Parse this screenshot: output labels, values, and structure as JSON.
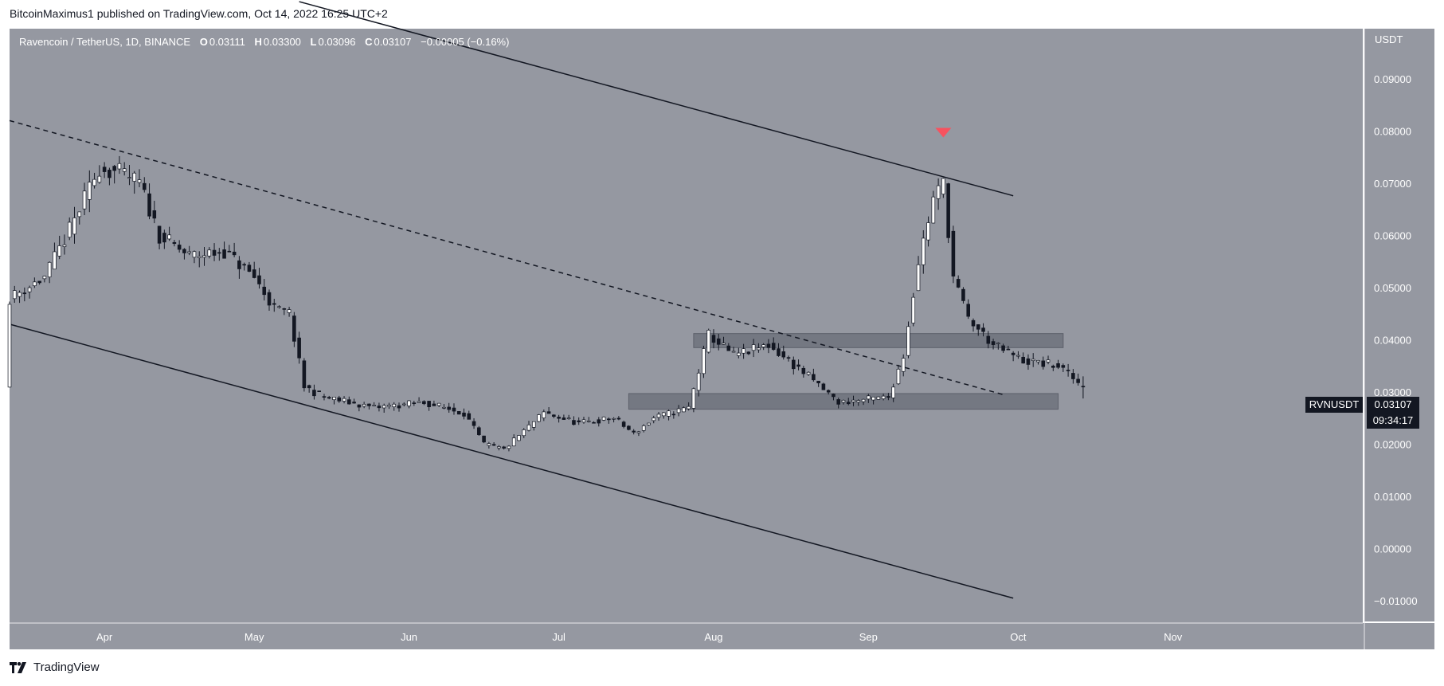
{
  "header": {
    "published_text": "BitcoinMaximus1 published on TradingView.com, Oct 14, 2022 16:25 UTC+2"
  },
  "legend": {
    "pair": "Ravencoin / TetherUS, 1D, BINANCE",
    "open_label": "O",
    "open_value": "0.03111",
    "high_label": "H",
    "high_value": "0.03300",
    "low_label": "L",
    "low_value": "0.03096",
    "close_label": "C",
    "close_value": "0.03107",
    "change": "−0.00005 (−0.16%)"
  },
  "price_axis": {
    "title": "USDT"
  },
  "badge": {
    "symbol": "RVNUSDT",
    "price": "0.03107",
    "countdown": "09:34:17"
  },
  "footer": {
    "brand": "TradingView"
  },
  "colors": {
    "plot_bg": "#9598a1",
    "axis_bg": "#9598a1",
    "up": "#ffffff",
    "down": "#131722",
    "line": "#131722",
    "zone": "#6a6d78",
    "marker": "#f7525f"
  },
  "chart_data": {
    "type": "candlestick",
    "title": "",
    "ylabel": "USDT",
    "y_ticks": [
      "0.09000",
      "0.08000",
      "0.07000",
      "0.06000",
      "0.05000",
      "0.04000",
      "0.03000",
      "0.02000",
      "0.01000",
      "0.00000",
      "−0.01000"
    ],
    "y_tick_values": [
      0.09,
      0.08,
      0.07,
      0.06,
      0.05,
      0.04,
      0.03,
      0.02,
      0.01,
      0.0,
      -0.01
    ],
    "ylim": [
      -0.01,
      0.1
    ],
    "x_ticks": [
      "Apr",
      "May",
      "Jun",
      "Jul",
      "Aug",
      "Sep",
      "Oct",
      "Nov"
    ],
    "x_tick_dates": [
      "2022-04-01",
      "2022-05-01",
      "2022-06-01",
      "2022-07-01",
      "2022-08-01",
      "2022-09-01",
      "2022-10-01",
      "2022-11-01"
    ],
    "x_range": [
      "2022-03-13",
      "2022-12-09"
    ],
    "price_anchors": [
      [
        "2022-03-13",
        0.048
      ],
      [
        "2022-03-20",
        0.052
      ],
      [
        "2022-03-25",
        0.061
      ],
      [
        "2022-03-31",
        0.073
      ],
      [
        "2022-04-04",
        0.072
      ],
      [
        "2022-04-08",
        0.07
      ],
      [
        "2022-04-12",
        0.06
      ],
      [
        "2022-04-18",
        0.056
      ],
      [
        "2022-04-25",
        0.057
      ],
      [
        "2022-05-01",
        0.052
      ],
      [
        "2022-05-05",
        0.046
      ],
      [
        "2022-05-08",
        0.045
      ],
      [
        "2022-05-11",
        0.031
      ],
      [
        "2022-05-15",
        0.029
      ],
      [
        "2022-05-25",
        0.027
      ],
      [
        "2022-06-04",
        0.028
      ],
      [
        "2022-06-12",
        0.026
      ],
      [
        "2022-06-16",
        0.02
      ],
      [
        "2022-06-20",
        0.019
      ],
      [
        "2022-06-28",
        0.026
      ],
      [
        "2022-07-05",
        0.024
      ],
      [
        "2022-07-12",
        0.025
      ],
      [
        "2022-07-16",
        0.022
      ],
      [
        "2022-07-20",
        0.025
      ],
      [
        "2022-07-27",
        0.027
      ],
      [
        "2022-07-31",
        0.041
      ],
      [
        "2022-08-05",
        0.037
      ],
      [
        "2022-08-12",
        0.039
      ],
      [
        "2022-08-20",
        0.033
      ],
      [
        "2022-08-26",
        0.028
      ],
      [
        "2022-09-05",
        0.029
      ],
      [
        "2022-09-08",
        0.037
      ],
      [
        "2022-09-11",
        0.055
      ],
      [
        "2022-09-14",
        0.067
      ],
      [
        "2022-09-16",
        0.07
      ],
      [
        "2022-09-18",
        0.052
      ],
      [
        "2022-09-21",
        0.044
      ],
      [
        "2022-09-26",
        0.039
      ],
      [
        "2022-10-02",
        0.036
      ],
      [
        "2022-10-09",
        0.035
      ],
      [
        "2022-10-14",
        0.031
      ]
    ],
    "last": {
      "date": "2022-10-14",
      "open": 0.03111,
      "high": 0.033,
      "low": 0.03096,
      "close": 0.03107
    },
    "trendlines": [
      {
        "style": "solid",
        "from": [
          "2022-05-10",
          0.1048
        ],
        "to": [
          "2022-09-30",
          0.0676
        ]
      },
      {
        "style": "solid",
        "from": [
          "2022-03-13",
          0.043
        ],
        "to": [
          "2022-09-30",
          -0.0095
        ]
      },
      {
        "style": "dashed",
        "from": [
          "2022-03-13",
          0.082
        ],
        "to": [
          "2022-09-28",
          0.0295
        ]
      }
    ],
    "zones": [
      {
        "from": "2022-07-28",
        "to": "2022-10-10",
        "low": 0.0385,
        "high": 0.0412
      },
      {
        "from": "2022-07-15",
        "to": "2022-10-09",
        "low": 0.0267,
        "high": 0.0297
      }
    ],
    "marker": {
      "date": "2022-09-16",
      "value": 0.0797,
      "shape": "down-triangle"
    },
    "grid": false,
    "legend_position": "top-left"
  }
}
